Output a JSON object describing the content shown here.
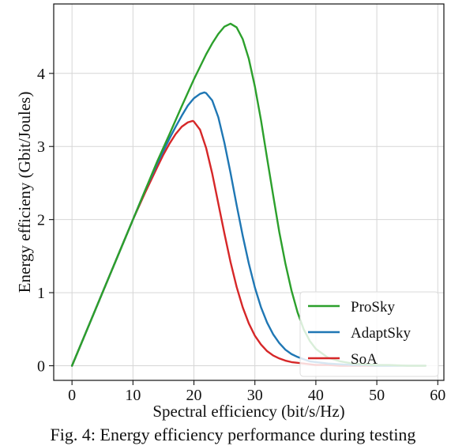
{
  "caption": "Fig. 4: Energy efficiency performance during testing",
  "chart_data": {
    "type": "line",
    "title": "",
    "xlabel": "Spectral efficiency (bit/s/Hz)",
    "ylabel": "Energy efficieny (Gbit/Joules)",
    "xlim": [
      -3,
      61
    ],
    "ylim": [
      -0.2,
      4.95
    ],
    "xticks": [
      0,
      10,
      20,
      30,
      40,
      50,
      60
    ],
    "yticks": [
      0,
      1,
      2,
      3,
      4
    ],
    "grid": true,
    "legend_position": "lower-right",
    "series": [
      {
        "name": "ProSky",
        "color": "#2ca02c",
        "x": [
          0,
          2,
          4,
          6,
          8,
          10,
          12,
          14,
          16,
          18,
          20,
          22,
          23,
          24,
          25,
          26,
          27,
          28,
          29,
          30,
          31,
          32,
          33,
          34,
          35,
          36,
          37,
          38,
          39,
          40,
          42,
          44,
          46,
          48,
          50,
          52,
          55,
          58
        ],
        "y": [
          0,
          0.4,
          0.8,
          1.2,
          1.6,
          2.0,
          2.4,
          2.8,
          3.17,
          3.55,
          3.92,
          4.26,
          4.41,
          4.54,
          4.64,
          4.68,
          4.63,
          4.47,
          4.2,
          3.82,
          3.36,
          2.84,
          2.33,
          1.83,
          1.4,
          1.03,
          0.73,
          0.5,
          0.34,
          0.23,
          0.11,
          0.06,
          0.03,
          0.02,
          0.01,
          0.01,
          0.0,
          0.0
        ]
      },
      {
        "name": "AdaptSky",
        "color": "#1f77b4",
        "x": [
          0,
          2,
          4,
          6,
          8,
          10,
          12,
          14,
          16,
          17,
          18,
          19,
          20,
          21,
          21.7,
          22,
          23,
          24,
          25,
          26,
          27,
          28,
          29,
          30,
          31,
          32,
          33,
          34,
          35,
          36,
          37,
          38,
          39,
          40,
          42,
          44,
          46,
          48,
          50,
          52,
          55,
          58
        ],
        "y": [
          0,
          0.4,
          0.8,
          1.2,
          1.6,
          2.0,
          2.4,
          2.77,
          3.11,
          3.27,
          3.42,
          3.56,
          3.66,
          3.72,
          3.74,
          3.73,
          3.63,
          3.4,
          3.05,
          2.64,
          2.2,
          1.78,
          1.4,
          1.07,
          0.8,
          0.59,
          0.43,
          0.31,
          0.22,
          0.16,
          0.12,
          0.09,
          0.06,
          0.05,
          0.03,
          0.02,
          0.01,
          0.01,
          0.0,
          0.0,
          0.0,
          0.0
        ]
      },
      {
        "name": "SoA",
        "color": "#d62728",
        "x": [
          0,
          2,
          4,
          6,
          8,
          10,
          12,
          14,
          15,
          16,
          17,
          18,
          19,
          19.8,
          20,
          21,
          22,
          23,
          24,
          25,
          26,
          27,
          28,
          29,
          30,
          31,
          32,
          33,
          34,
          35,
          36,
          37,
          38,
          39,
          40,
          42,
          44,
          46,
          48,
          50
        ],
        "y": [
          0,
          0.4,
          0.8,
          1.2,
          1.6,
          2.0,
          2.37,
          2.72,
          2.89,
          3.04,
          3.17,
          3.27,
          3.33,
          3.35,
          3.34,
          3.23,
          2.98,
          2.63,
          2.22,
          1.81,
          1.42,
          1.08,
          0.8,
          0.58,
          0.41,
          0.29,
          0.2,
          0.14,
          0.1,
          0.07,
          0.05,
          0.04,
          0.03,
          0.02,
          0.01,
          0.01,
          0.0,
          0.0,
          0.0,
          0.0
        ]
      }
    ]
  }
}
